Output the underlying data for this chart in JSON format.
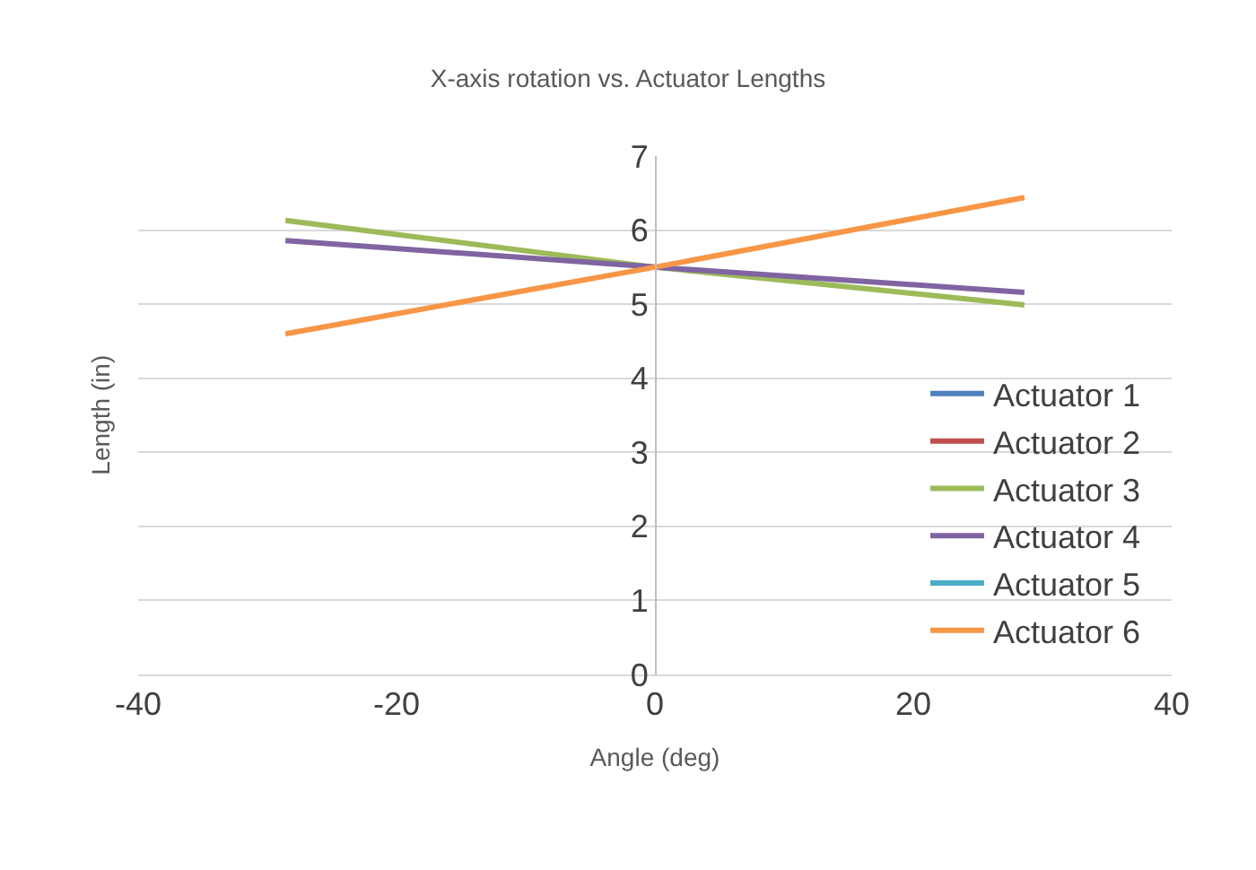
{
  "chart_data": {
    "type": "line",
    "title": "X-axis rotation vs. Actuator Lengths",
    "xlabel": "Angle (deg)",
    "ylabel": "Length (in)",
    "x": [
      -28.6,
      0,
      28.6
    ],
    "series": [
      {
        "name": "Actuator 1",
        "color": "#4f81bd",
        "values": [
          null,
          null,
          null
        ]
      },
      {
        "name": "Actuator 2",
        "color": "#c0504d",
        "values": [
          null,
          null,
          null
        ]
      },
      {
        "name": "Actuator 3",
        "color": "#9bbb59",
        "values": [
          6.13,
          5.5,
          4.99
        ]
      },
      {
        "name": "Actuator 4",
        "color": "#8064a2",
        "values": [
          5.86,
          5.5,
          5.16
        ]
      },
      {
        "name": "Actuator 5",
        "color": "#4bacc6",
        "values": [
          null,
          null,
          null
        ]
      },
      {
        "name": "Actuator 6",
        "color": "#f79646",
        "values": [
          4.6,
          5.5,
          6.44
        ]
      }
    ],
    "xlim": [
      -40,
      40
    ],
    "xticks": [
      -40,
      -20,
      0,
      20,
      40
    ],
    "ylim": [
      0,
      7
    ],
    "yticks": [
      0,
      1,
      2,
      3,
      4,
      5,
      6,
      7
    ],
    "grid": "y",
    "legend": "bottom right",
    "marker": "none",
    "line_style": "solid"
  }
}
